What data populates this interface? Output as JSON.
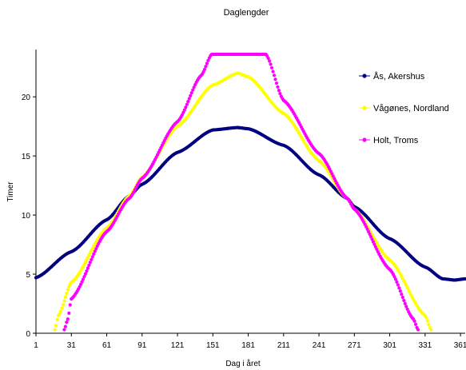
{
  "chart_data": {
    "type": "scatter",
    "title": "Daglengder",
    "xlabel": "Dag i året",
    "ylabel": "Timer",
    "xlim": [
      1,
      365
    ],
    "ylim": [
      0,
      24
    ],
    "x_ticks": [
      "1",
      "31",
      "61",
      "91",
      "121",
      "151",
      "181",
      "211",
      "241",
      "271",
      "301",
      "331",
      "361"
    ],
    "y_ticks": [
      "0",
      "5",
      "10",
      "15",
      "20"
    ],
    "grid": false,
    "legend_position": "top-right",
    "series": [
      {
        "name": "Ås, Akershus",
        "color": "#000080",
        "points": [
          [
            1,
            4.7
          ],
          [
            31,
            6.9
          ],
          [
            61,
            9.6
          ],
          [
            80,
            11.6
          ],
          [
            91,
            12.6
          ],
          [
            121,
            15.3
          ],
          [
            151,
            17.2
          ],
          [
            172,
            17.4
          ],
          [
            181,
            17.3
          ],
          [
            211,
            15.9
          ],
          [
            241,
            13.4
          ],
          [
            265,
            11.4
          ],
          [
            271,
            10.7
          ],
          [
            301,
            8.0
          ],
          [
            331,
            5.6
          ],
          [
            346,
            4.6
          ],
          [
            356,
            4.5
          ],
          [
            365,
            4.6
          ]
        ]
      },
      {
        "name": "Vågønes, Nordland",
        "color": "#FFFF00",
        "points": [
          [
            17,
            0.3
          ],
          [
            20,
            1.5
          ],
          [
            31,
            4.3
          ],
          [
            61,
            8.9
          ],
          [
            80,
            11.6
          ],
          [
            91,
            13.2
          ],
          [
            121,
            17.5
          ],
          [
            151,
            21.0
          ],
          [
            172,
            22.0
          ],
          [
            181,
            21.7
          ],
          [
            211,
            18.6
          ],
          [
            241,
            14.6
          ],
          [
            265,
            11.4
          ],
          [
            271,
            10.5
          ],
          [
            301,
            6.2
          ],
          [
            331,
            1.5
          ],
          [
            336,
            0.3
          ]
        ]
      },
      {
        "name": "Holt, Troms",
        "color": "#FF00FF",
        "points": [
          [
            25,
            0.3
          ],
          [
            28,
            1.2
          ],
          [
            31,
            2.9
          ],
          [
            61,
            8.6
          ],
          [
            80,
            11.4
          ],
          [
            91,
            13.1
          ],
          [
            121,
            17.9
          ],
          [
            141,
            21.8
          ],
          [
            150,
            23.6
          ],
          [
            196,
            23.6
          ],
          [
            211,
            19.7
          ],
          [
            241,
            15.2
          ],
          [
            265,
            11.4
          ],
          [
            271,
            10.5
          ],
          [
            301,
            5.4
          ],
          [
            321,
            1.2
          ],
          [
            325,
            0.3
          ]
        ]
      }
    ]
  }
}
